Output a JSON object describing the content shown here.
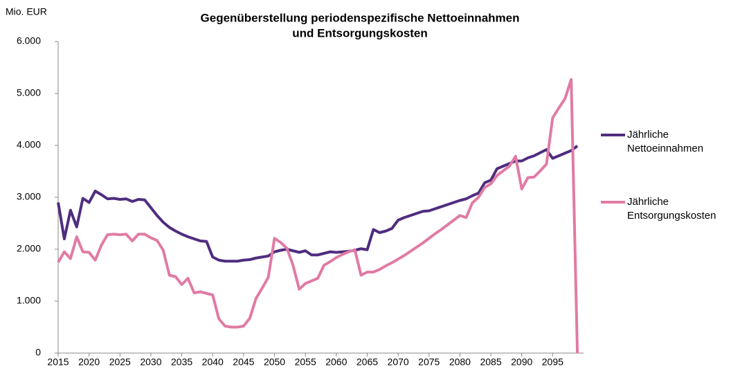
{
  "chart_data": {
    "type": "line",
    "title": [
      "Gegenüberstellung periodenspezifische Nettoeinnahmen",
      "und Entsorgungskosten"
    ],
    "y_label": "Mio. EUR",
    "x": [
      2015,
      2016,
      2017,
      2018,
      2019,
      2020,
      2021,
      2022,
      2023,
      2024,
      2025,
      2026,
      2027,
      2028,
      2029,
      2030,
      2031,
      2032,
      2033,
      2034,
      2035,
      2036,
      2037,
      2038,
      2039,
      2040,
      2041,
      2042,
      2043,
      2044,
      2045,
      2046,
      2047,
      2048,
      2049,
      2050,
      2051,
      2052,
      2053,
      2054,
      2055,
      2056,
      2057,
      2058,
      2059,
      2060,
      2061,
      2062,
      2063,
      2064,
      2065,
      2066,
      2067,
      2068,
      2069,
      2070,
      2071,
      2072,
      2073,
      2074,
      2075,
      2076,
      2077,
      2078,
      2079,
      2080,
      2081,
      2082,
      2083,
      2084,
      2085,
      2086,
      2087,
      2088,
      2089,
      2090,
      2091,
      2092,
      2093,
      2094,
      2095,
      2096,
      2097,
      2098,
      2099
    ],
    "series": [
      {
        "name": "Jährliche Nettoeinnahmen",
        "color": "#4f2d7f",
        "values": [
          2900,
          2200,
          2750,
          2430,
          2980,
          2900,
          3120,
          3050,
          2970,
          2980,
          2960,
          2970,
          2920,
          2960,
          2950,
          2800,
          2650,
          2520,
          2420,
          2350,
          2290,
          2240,
          2200,
          2160,
          2150,
          1850,
          1790,
          1770,
          1770,
          1770,
          1790,
          1800,
          1830,
          1850,
          1870,
          1950,
          1980,
          2000,
          1970,
          1940,
          1970,
          1890,
          1890,
          1920,
          1950,
          1940,
          1950,
          1960,
          1980,
          2010,
          1990,
          2380,
          2320,
          2350,
          2400,
          2560,
          2610,
          2650,
          2690,
          2730,
          2740,
          2780,
          2820,
          2860,
          2900,
          2940,
          2970,
          3030,
          3080,
          3280,
          3330,
          3550,
          3600,
          3650,
          3700,
          3700,
          3760,
          3800,
          3860,
          3920,
          3750,
          3800,
          3850,
          3900,
          3990
        ]
      },
      {
        "name": "Jährliche Entsorgungskosten",
        "color": "#e07ba4",
        "values": [
          1750,
          1950,
          1820,
          2240,
          1950,
          1940,
          1790,
          2080,
          2280,
          2290,
          2280,
          2290,
          2160,
          2290,
          2290,
          2220,
          2170,
          1980,
          1500,
          1470,
          1320,
          1440,
          1160,
          1180,
          1150,
          1120,
          660,
          520,
          500,
          500,
          520,
          670,
          1050,
          1250,
          1460,
          2210,
          2130,
          2020,
          1690,
          1230,
          1340,
          1390,
          1440,
          1690,
          1760,
          1840,
          1900,
          1950,
          1990,
          1500,
          1560,
          1560,
          1610,
          1680,
          1740,
          1810,
          1880,
          1960,
          2040,
          2120,
          2210,
          2300,
          2380,
          2470,
          2560,
          2650,
          2610,
          2890,
          3000,
          3190,
          3260,
          3420,
          3510,
          3600,
          3790,
          3160,
          3380,
          3390,
          3510,
          3640,
          4530,
          4720,
          4900,
          5270,
          0
        ]
      }
    ],
    "xlim": [
      2015,
      2100
    ],
    "xticks": [
      2015,
      2020,
      2025,
      2030,
      2035,
      2040,
      2045,
      2050,
      2055,
      2060,
      2065,
      2070,
      2075,
      2080,
      2085,
      2090,
      2095
    ],
    "ylim": [
      0,
      6000
    ],
    "yticks": [
      0,
      {
        "value": 1000,
        "label": "1.000"
      },
      {
        "value": 2000,
        "label": "2.000"
      },
      {
        "value": 3000,
        "label": "3.000"
      },
      {
        "value": 4000,
        "label": "4.000"
      },
      {
        "value": 5000,
        "label": "5.000"
      },
      {
        "value": 6000,
        "label": "6.000"
      }
    ],
    "legend": "right"
  }
}
